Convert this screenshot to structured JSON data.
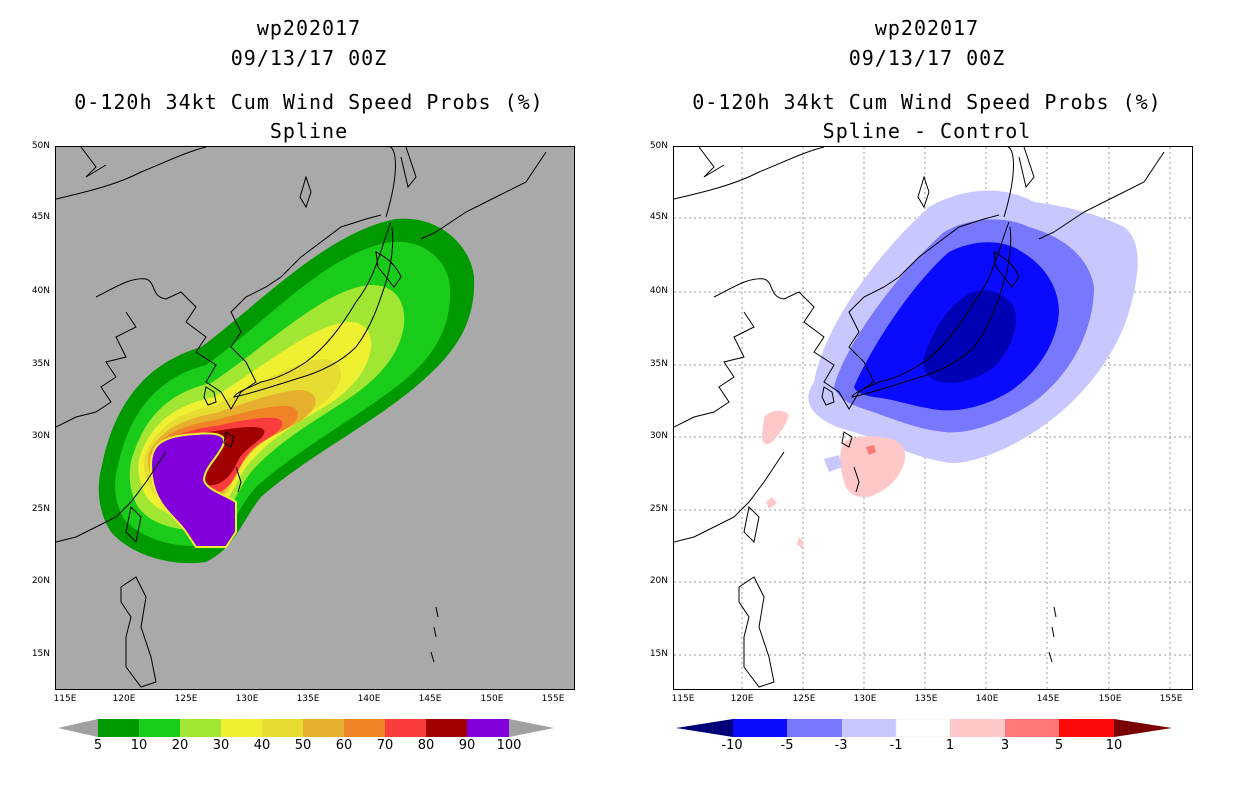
{
  "colors": {
    "prob": [
      "#009a00",
      "#19cc19",
      "#a0e632",
      "#f0f032",
      "#e6dc32",
      "#e6af2d",
      "#f08228",
      "#fa3c3c",
      "#a00000",
      "#8200dc"
    ],
    "prob_low": "#a0a0a0",
    "prob_high": "#a0a0a0",
    "diff": [
      "#0000b4",
      "#0a0aff",
      "#7878ff",
      "#c8c8ff",
      "#ffffff",
      "#ffc8c8",
      "#ff7878",
      "#ff0a0a",
      "#b40000"
    ],
    "diff_low": "#00007a",
    "diff_high": "#7a0000",
    "map_bg_left": "#a9a9a9",
    "coast": "#000000"
  },
  "panels": [
    {
      "storm": "wp202017",
      "datetime": "09/13/17 00Z",
      "product": "0-120h 34kt Cum Wind Speed Probs (%)",
      "subtitle": "Spline",
      "lat_labels": [
        "50N",
        "45N",
        "40N",
        "35N",
        "30N",
        "25N",
        "20N",
        "15N"
      ],
      "lon_labels": [
        "115E",
        "120E",
        "125E",
        "130E",
        "135E",
        "140E",
        "145E",
        "150E",
        "155E"
      ],
      "colorbar_labels": [
        "5",
        "10",
        "20",
        "30",
        "40",
        "50",
        "60",
        "70",
        "80",
        "90",
        "100"
      ]
    },
    {
      "storm": "wp202017",
      "datetime": "09/13/17 00Z",
      "product": "0-120h 34kt Cum Wind Speed Probs (%)",
      "subtitle": "Spline - Control",
      "lat_labels": [
        "50N",
        "45N",
        "40N",
        "35N",
        "30N",
        "25N",
        "20N",
        "15N"
      ],
      "lon_labels": [
        "115E",
        "120E",
        "125E",
        "130E",
        "135E",
        "140E",
        "145E",
        "150E",
        "155E"
      ],
      "colorbar_labels": [
        "-10",
        "-5",
        "-3",
        "-1",
        "1",
        "3",
        "5",
        "10"
      ]
    }
  ]
}
